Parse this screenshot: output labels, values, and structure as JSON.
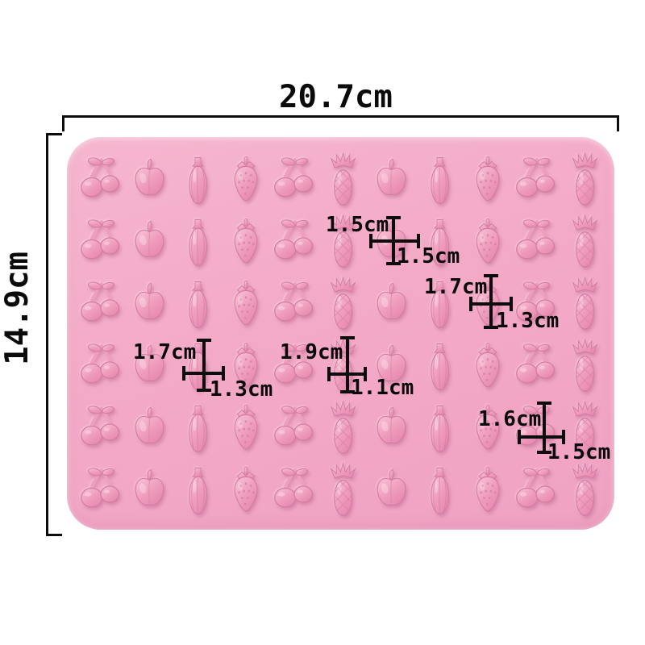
{
  "page": {
    "background_color": "#ffffff"
  },
  "product": {
    "name": "pink fruit silicone mold",
    "mold_color": "#f3aac7",
    "cavity_color": "#ef9dbc",
    "rows": 6,
    "columns": 11,
    "cavity_pattern": [
      "cherry",
      "apple",
      "banana",
      "strawberry",
      "cherry",
      "pineapple",
      "apple",
      "banana",
      "strawberry",
      "cherry",
      "pineapple"
    ]
  },
  "overall_dimensions": {
    "width_label": "20.7cm",
    "height_label": "14.9cm",
    "line_color": "#0d0d0d"
  },
  "cavity_dimensions": [
    {
      "top_label": "1.5cm",
      "bottom_label": "1.5cm"
    },
    {
      "top_label": "1.7cm",
      "bottom_label": "1.3cm"
    },
    {
      "top_label": "1.7cm",
      "bottom_label": "1.3cm"
    },
    {
      "top_label": "1.9cm",
      "bottom_label": "1.1cm"
    },
    {
      "top_label": "1.6cm",
      "bottom_label": "1.5cm"
    }
  ]
}
